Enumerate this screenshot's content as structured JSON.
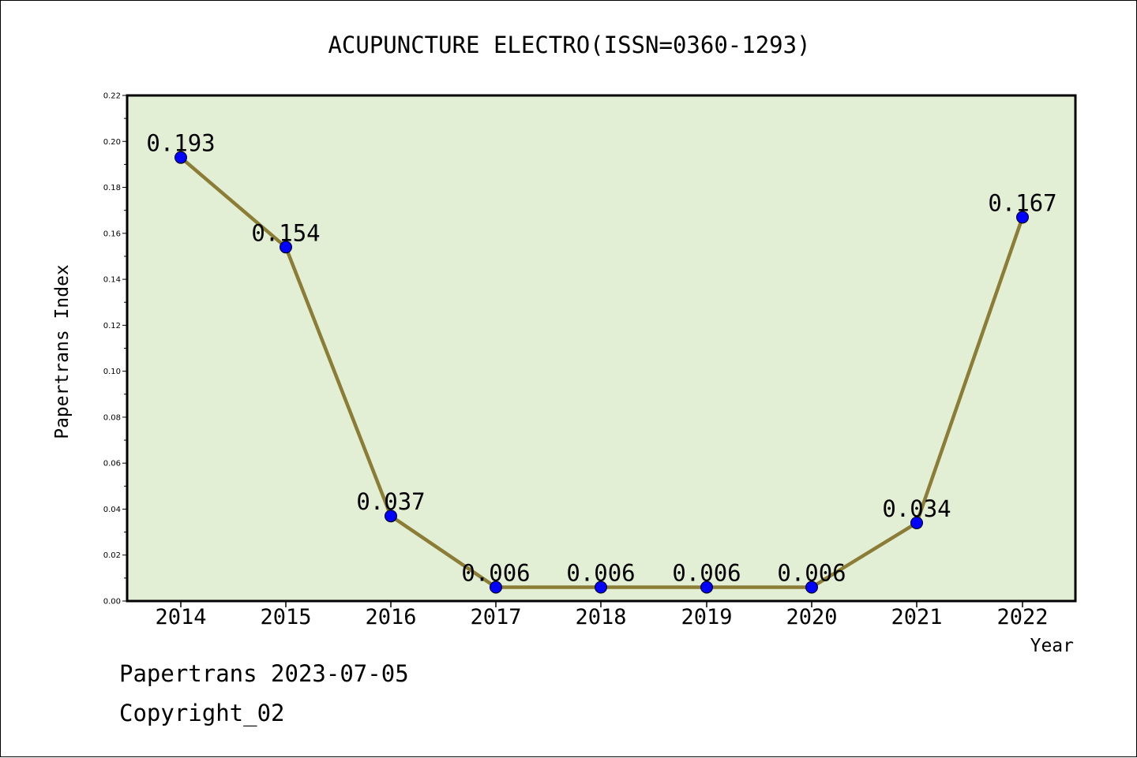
{
  "chart_data": {
    "type": "line",
    "title": "ACUPUNCTURE ELECTRO(ISSN=0360-1293)",
    "xlabel": "Year",
    "ylabel": "Papertrans Index",
    "categories": [
      "2014",
      "2015",
      "2016",
      "2017",
      "2018",
      "2019",
      "2020",
      "2021",
      "2022"
    ],
    "series": [
      {
        "values": [
          0.193,
          0.154,
          0.037,
          0.006,
          0.006,
          0.006,
          0.006,
          0.034,
          0.167
        ],
        "labels": [
          "0.193",
          "0.154",
          "0.037",
          "0.006",
          "0.006",
          "0.006",
          "0.006",
          "0.034",
          "0.167"
        ]
      }
    ],
    "ylim": [
      0,
      0.22
    ],
    "yticks": [
      "0.00",
      "0.02",
      "0.04",
      "0.06",
      "0.08",
      "0.10",
      "0.12",
      "0.14",
      "0.16",
      "0.18",
      "0.20",
      "0.22"
    ],
    "grid": false,
    "colors": {
      "plot_background": "#e2efd5",
      "line": "#8b7d35",
      "marker": "#0000ff"
    }
  },
  "footer": {
    "line1": "Papertrans 2023-07-05",
    "line2": "Copyright_02"
  }
}
